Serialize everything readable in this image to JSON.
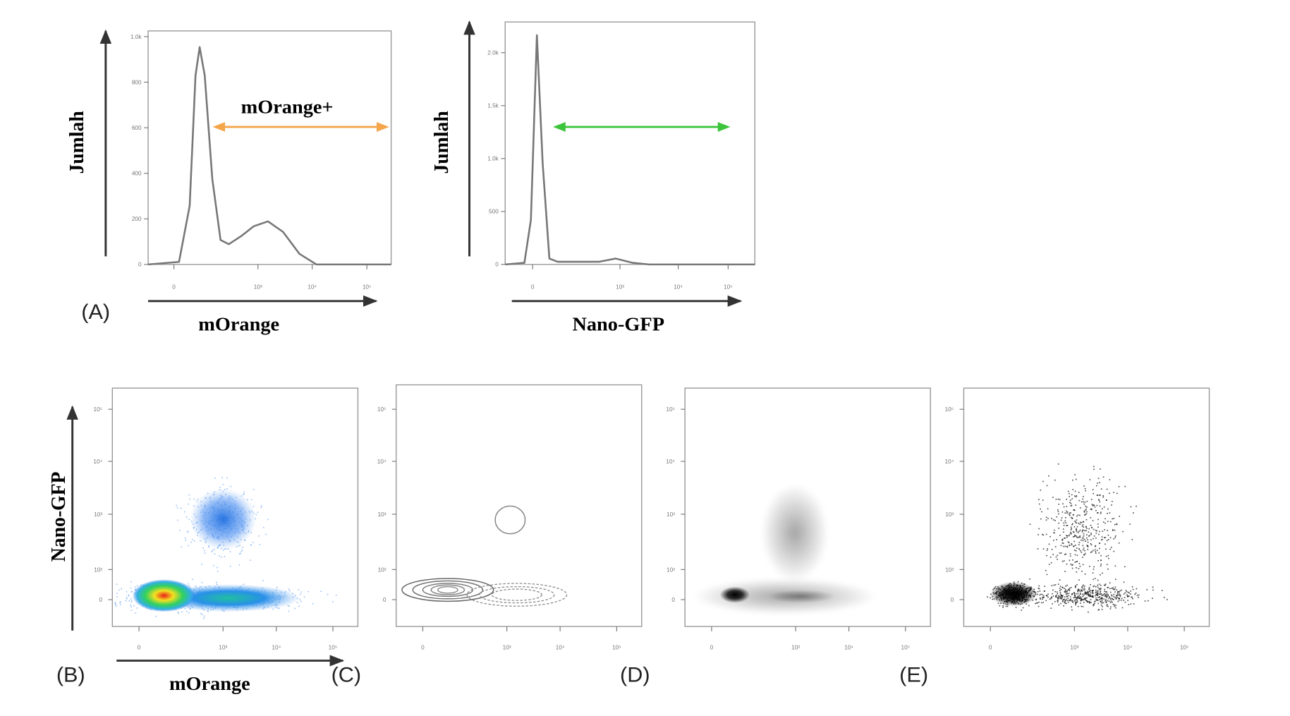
{
  "chart_data": [
    {
      "type": "line",
      "y_label": "Jumlah",
      "x_label": "mOrange",
      "annotation": "mOrange+",
      "panel_label": "(A)",
      "color": "#777777",
      "annotation_color": "#f5a54a",
      "x": [
        0,
        127,
        171,
        195,
        212,
        233,
        264,
        298,
        332,
        384,
        435,
        493,
        555,
        623,
        692,
        1000
      ],
      "values": [
        0,
        11,
        257,
        829,
        954,
        829,
        375,
        107,
        89,
        125,
        168,
        189,
        143,
        46,
        0,
        0
      ],
      "xlim": [
        0,
        1000
      ],
      "xticks": [
        {
          "value": 106,
          "label": "0"
        },
        {
          "value": 452,
          "label": "10³"
        },
        {
          "value": 675,
          "label": "10⁴"
        },
        {
          "value": 900,
          "label": "10⁵"
        }
      ],
      "ylim": [
        0,
        1025
      ],
      "yticks": [
        0,
        200,
        400,
        600,
        800,
        {
          "value": 1000,
          "label": "1.0k"
        }
      ]
    },
    {
      "type": "line",
      "y_label": "Jumlah",
      "x_label": "Nano-GFP",
      "color": "#777777",
      "annotation_color": "#3cc43c",
      "x": [
        0,
        77,
        103,
        127,
        150,
        177,
        210,
        377,
        443,
        510,
        577,
        1000
      ],
      "values": [
        0,
        15,
        420,
        2165,
        960,
        55,
        25,
        25,
        55,
        15,
        0,
        0
      ],
      "xlim": [
        0,
        1000
      ],
      "xticks": [
        {
          "value": 110,
          "label": "0"
        },
        {
          "value": 460,
          "label": "10³"
        },
        {
          "value": 693,
          "label": "10⁴"
        },
        {
          "value": 893,
          "label": "10⁵"
        }
      ],
      "ylim": [
        0,
        2290
      ],
      "yticks": [
        0,
        500,
        {
          "value": 1000,
          "label": "1.0k"
        },
        {
          "value": 1500,
          "label": "1.5k"
        },
        {
          "value": 2000,
          "label": "2.0k"
        }
      ]
    }
  ],
  "density_panels": {
    "y_label": "Nano-GFP",
    "x_label": "mOrange",
    "panel_labels": [
      "(B)",
      "(C)",
      "(D)",
      "(E)"
    ],
    "xtick_labels": [
      "0",
      "10³",
      "10⁴",
      "10⁵"
    ],
    "ytick_labels": [
      "0",
      "10²",
      "10³",
      "10⁴",
      "10⁵"
    ]
  }
}
